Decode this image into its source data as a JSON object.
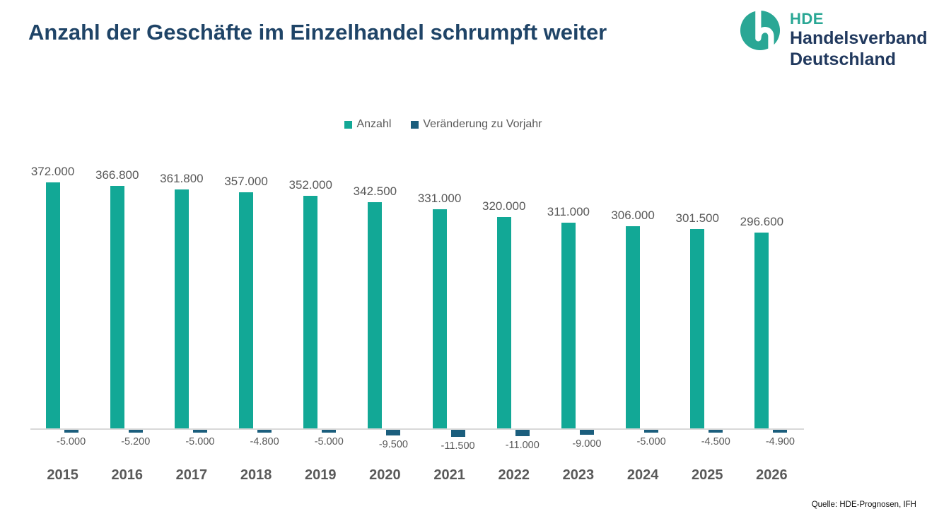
{
  "title": "Anzahl der Geschäfte im Einzelhandel schrumpft weiter",
  "logo": {
    "abbr": "HDE",
    "line1": "Handelsverband",
    "line2": "Deutschland",
    "mark_color": "#2AA795",
    "text_color": "#21395E"
  },
  "source": "Quelle: HDE-Prognosen, IFH",
  "colors": {
    "title": "#1F4467",
    "bar_anzahl": "#12A896",
    "bar_veraenderung": "#1B5E7D",
    "axis_line": "#D9D9D9",
    "labels": "#595959"
  },
  "chart_data": {
    "type": "bar",
    "title": "Anzahl der Geschäfte im Einzelhandel schrumpft weiter",
    "categories": [
      "2015",
      "2016",
      "2017",
      "2018",
      "2019",
      "2020",
      "2021",
      "2022",
      "2023",
      "2024",
      "2025",
      "2026"
    ],
    "series": [
      {
        "name": "Anzahl",
        "color": "#12A896",
        "values": [
          372000,
          366800,
          361800,
          357000,
          352000,
          342500,
          331000,
          320000,
          311000,
          306000,
          301500,
          296600
        ],
        "labels": [
          "372.000",
          "366.800",
          "361.800",
          "357.000",
          "352.000",
          "342.500",
          "331.000",
          "320.000",
          "311.000",
          "306.000",
          "301.500",
          "296.600"
        ]
      },
      {
        "name": "Veränderung zu Vorjahr",
        "color": "#1B5E7D",
        "values": [
          -5000,
          -5200,
          -5000,
          -4800,
          -5000,
          -9500,
          -11500,
          -11000,
          -9000,
          -5000,
          -4500,
          -4900
        ],
        "labels": [
          "-5.000",
          "-5.200",
          "-5.000",
          "-4.800",
          "-5.000",
          "-9.500",
          "-11.500",
          "-11.000",
          "-9.000",
          "-5.000",
          "-4.500",
          "-4.900"
        ]
      }
    ],
    "xlabel": "",
    "ylabel": "",
    "ylim": [
      -15000,
      380000
    ],
    "value_axis_visible": false,
    "grid": false,
    "legend_position": "top",
    "data_labels": true
  }
}
